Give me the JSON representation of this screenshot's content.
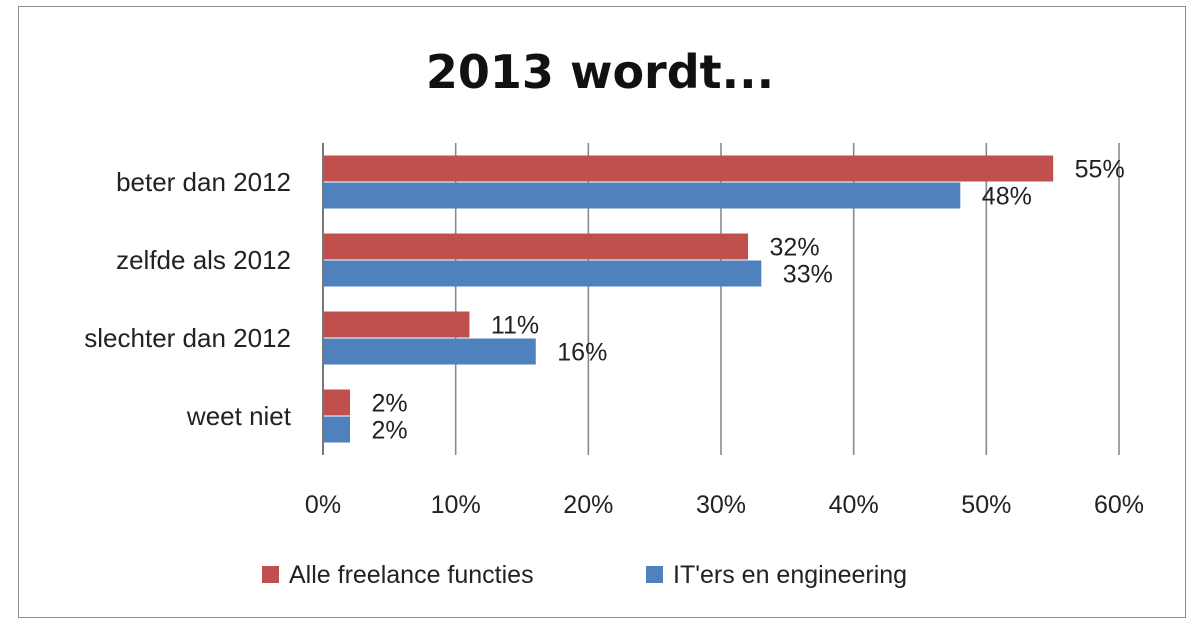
{
  "chart_data": {
    "type": "bar",
    "orientation": "horizontal",
    "title": "2013 wordt...",
    "categories": [
      "beter dan 2012",
      "zelfde als 2012",
      "slechter dan 2012",
      "weet niet"
    ],
    "series": [
      {
        "name": "Alle freelance functies",
        "color": "#c0504d",
        "values": [
          55,
          32,
          11,
          2
        ],
        "labels": [
          "55%",
          "32%",
          "11%",
          "2%"
        ]
      },
      {
        "name": "IT'ers en engineering",
        "color": "#4f81bd",
        "values": [
          48,
          33,
          16,
          2
        ],
        "labels": [
          "48%",
          "33%",
          "16%",
          "2%"
        ]
      }
    ],
    "xlim": [
      0,
      60
    ],
    "xticks": [
      0,
      10,
      20,
      30,
      40,
      50,
      60
    ],
    "xtick_labels": [
      "0%",
      "10%",
      "20%",
      "30%",
      "40%",
      "50%",
      "60%"
    ],
    "xlabel": "",
    "ylabel": "",
    "grid": "vertical",
    "legend_position": "bottom"
  }
}
